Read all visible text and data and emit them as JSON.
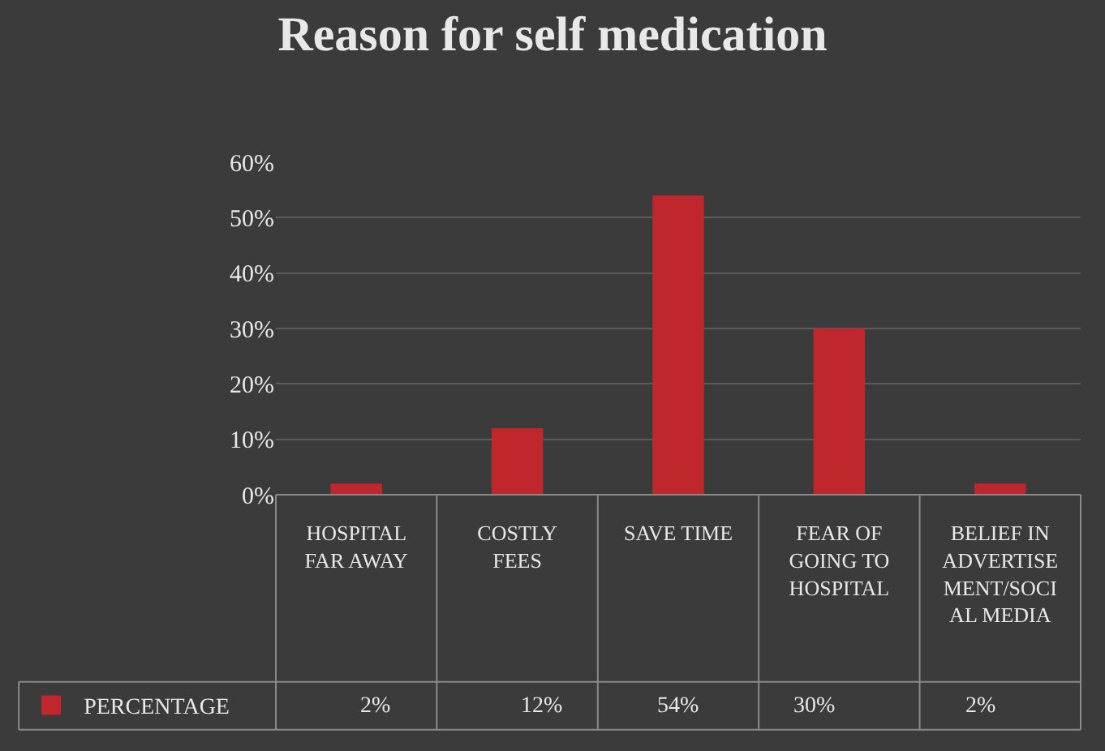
{
  "chart_data": {
    "type": "bar",
    "title": "Reason for self medication",
    "categories": [
      "HOSPITAL FAR AWAY",
      "COSTLY FEES",
      "SAVE TIME",
      "FEAR OF GOING TO HOSPITAL",
      "BELIEF IN ADVERTISEMENT/SOCIAL MEDIA"
    ],
    "series": [
      {
        "name": "PERCENTAGE",
        "color": "#c0272d",
        "values": [
          2,
          12,
          54,
          30,
          2
        ],
        "value_labels": [
          "2%",
          "12%",
          "54%",
          "30%",
          "2%"
        ]
      }
    ],
    "ylim": [
      0,
      60
    ],
    "yticks": [
      {
        "value": 0,
        "label": "0%"
      },
      {
        "value": 10,
        "label": "10%"
      },
      {
        "value": 20,
        "label": "20%"
      },
      {
        "value": 30,
        "label": "30%"
      },
      {
        "value": 40,
        "label": "40%"
      },
      {
        "value": 50,
        "label": "50%"
      },
      {
        "value": 60,
        "label": "60%"
      }
    ],
    "grid": "y",
    "legend": "bottom left"
  }
}
